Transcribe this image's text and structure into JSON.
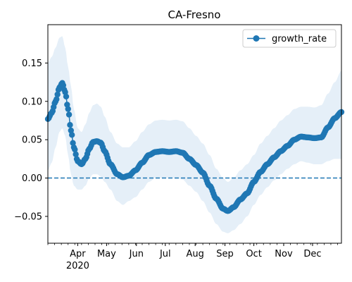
{
  "chart_data": {
    "type": "line",
    "title": "CA-Fresno",
    "xlabel": "",
    "ylabel": "",
    "x_axis": {
      "type": "date",
      "range": [
        "2020-03-01",
        "2020-12-31"
      ],
      "ticks": [
        {
          "date": "2020-04-01",
          "label": "Apr",
          "sublabel": "2020"
        },
        {
          "date": "2020-05-01",
          "label": "May",
          "sublabel": ""
        },
        {
          "date": "2020-06-01",
          "label": "Jun",
          "sublabel": ""
        },
        {
          "date": "2020-07-01",
          "label": "Jul",
          "sublabel": ""
        },
        {
          "date": "2020-08-01",
          "label": "Aug",
          "sublabel": ""
        },
        {
          "date": "2020-09-01",
          "label": "Sep",
          "sublabel": ""
        },
        {
          "date": "2020-10-01",
          "label": "Oct",
          "sublabel": ""
        },
        {
          "date": "2020-11-01",
          "label": "Nov",
          "sublabel": ""
        },
        {
          "date": "2020-12-01",
          "label": "Dec",
          "sublabel": ""
        }
      ],
      "minor_ticks": "weekly"
    },
    "y_axis": {
      "range": [
        -0.085,
        0.2
      ],
      "ticks": [
        -0.05,
        0.0,
        0.05,
        0.1,
        0.15
      ],
      "tick_labels": [
        "−0.05",
        "0.00",
        "0.05",
        "0.10",
        "0.15"
      ]
    },
    "grid": false,
    "legend": {
      "placement": "top-right",
      "entries": [
        "growth_rate"
      ]
    },
    "reference_line": {
      "y": 0.0,
      "style": "dashed",
      "color": "#1f77b4"
    },
    "colors": {
      "series": "#1f77b4",
      "band": "#dce9f5"
    },
    "series": [
      {
        "name": "growth_rate",
        "marker": "circle",
        "anchors": [
          {
            "date": "2020-03-01",
            "y": 0.077,
            "lower": 0.01,
            "upper": 0.15
          },
          {
            "date": "2020-03-05",
            "y": 0.085,
            "lower": 0.02,
            "upper": 0.158
          },
          {
            "date": "2020-03-09",
            "y": 0.1,
            "lower": 0.04,
            "upper": 0.17
          },
          {
            "date": "2020-03-13",
            "y": 0.118,
            "lower": 0.06,
            "upper": 0.183
          },
          {
            "date": "2020-03-16",
            "y": 0.124,
            "lower": 0.065,
            "upper": 0.185
          },
          {
            "date": "2020-03-19",
            "y": 0.112,
            "lower": 0.055,
            "upper": 0.17
          },
          {
            "date": "2020-03-22",
            "y": 0.09,
            "lower": 0.03,
            "upper": 0.145
          },
          {
            "date": "2020-03-25",
            "y": 0.062,
            "lower": 0.005,
            "upper": 0.12
          },
          {
            "date": "2020-03-28",
            "y": 0.04,
            "lower": -0.01,
            "upper": 0.09
          },
          {
            "date": "2020-04-01",
            "y": 0.022,
            "lower": -0.015,
            "upper": 0.065
          },
          {
            "date": "2020-04-05",
            "y": 0.018,
            "lower": -0.015,
            "upper": 0.06
          },
          {
            "date": "2020-04-09",
            "y": 0.025,
            "lower": -0.01,
            "upper": 0.07
          },
          {
            "date": "2020-04-13",
            "y": 0.038,
            "lower": 0.0,
            "upper": 0.085
          },
          {
            "date": "2020-04-17",
            "y": 0.047,
            "lower": 0.005,
            "upper": 0.095
          },
          {
            "date": "2020-04-21",
            "y": 0.048,
            "lower": 0.005,
            "upper": 0.097
          },
          {
            "date": "2020-04-25",
            "y": 0.046,
            "lower": 0.002,
            "upper": 0.093
          },
          {
            "date": "2020-04-29",
            "y": 0.035,
            "lower": -0.005,
            "upper": 0.08
          },
          {
            "date": "2020-05-05",
            "y": 0.018,
            "lower": -0.015,
            "upper": 0.06
          },
          {
            "date": "2020-05-12",
            "y": 0.005,
            "lower": -0.03,
            "upper": 0.045
          },
          {
            "date": "2020-05-18",
            "y": 0.001,
            "lower": -0.035,
            "upper": 0.04
          },
          {
            "date": "2020-05-24",
            "y": 0.003,
            "lower": -0.03,
            "upper": 0.04
          },
          {
            "date": "2020-05-31",
            "y": 0.01,
            "lower": -0.025,
            "upper": 0.048
          },
          {
            "date": "2020-06-07",
            "y": 0.02,
            "lower": -0.015,
            "upper": 0.06
          },
          {
            "date": "2020-06-14",
            "y": 0.03,
            "lower": -0.005,
            "upper": 0.07
          },
          {
            "date": "2020-06-21",
            "y": 0.034,
            "lower": 0.0,
            "upper": 0.075
          },
          {
            "date": "2020-06-28",
            "y": 0.035,
            "lower": 0.0,
            "upper": 0.076
          },
          {
            "date": "2020-07-05",
            "y": 0.034,
            "lower": 0.0,
            "upper": 0.075
          },
          {
            "date": "2020-07-12",
            "y": 0.035,
            "lower": 0.0,
            "upper": 0.076
          },
          {
            "date": "2020-07-19",
            "y": 0.033,
            "lower": -0.002,
            "upper": 0.074
          },
          {
            "date": "2020-07-26",
            "y": 0.025,
            "lower": -0.01,
            "upper": 0.065
          },
          {
            "date": "2020-08-02",
            "y": 0.017,
            "lower": -0.018,
            "upper": 0.055
          },
          {
            "date": "2020-08-09",
            "y": 0.007,
            "lower": -0.03,
            "upper": 0.045
          },
          {
            "date": "2020-08-16",
            "y": -0.01,
            "lower": -0.045,
            "upper": 0.03
          },
          {
            "date": "2020-08-23",
            "y": -0.027,
            "lower": -0.06,
            "upper": 0.012
          },
          {
            "date": "2020-08-30",
            "y": -0.04,
            "lower": -0.07,
            "upper": 0.0
          },
          {
            "date": "2020-09-04",
            "y": -0.043,
            "lower": -0.072,
            "upper": -0.005
          },
          {
            "date": "2020-09-10",
            "y": -0.038,
            "lower": -0.068,
            "upper": 0.0
          },
          {
            "date": "2020-09-17",
            "y": -0.028,
            "lower": -0.06,
            "upper": 0.01
          },
          {
            "date": "2020-09-24",
            "y": -0.02,
            "lower": -0.05,
            "upper": 0.018
          },
          {
            "date": "2020-10-01",
            "y": -0.005,
            "lower": -0.035,
            "upper": 0.03
          },
          {
            "date": "2020-10-08",
            "y": 0.008,
            "lower": -0.022,
            "upper": 0.045
          },
          {
            "date": "2020-10-15",
            "y": 0.018,
            "lower": -0.012,
            "upper": 0.055
          },
          {
            "date": "2020-10-22",
            "y": 0.027,
            "lower": -0.003,
            "upper": 0.065
          },
          {
            "date": "2020-10-29",
            "y": 0.035,
            "lower": 0.005,
            "upper": 0.075
          },
          {
            "date": "2020-11-05",
            "y": 0.042,
            "lower": 0.012,
            "upper": 0.082
          },
          {
            "date": "2020-11-12",
            "y": 0.05,
            "lower": 0.018,
            "upper": 0.09
          },
          {
            "date": "2020-11-19",
            "y": 0.054,
            "lower": 0.022,
            "upper": 0.093
          },
          {
            "date": "2020-11-26",
            "y": 0.053,
            "lower": 0.02,
            "upper": 0.093
          },
          {
            "date": "2020-12-03",
            "y": 0.052,
            "lower": 0.018,
            "upper": 0.092
          },
          {
            "date": "2020-12-10",
            "y": 0.053,
            "lower": 0.018,
            "upper": 0.095
          },
          {
            "date": "2020-12-17",
            "y": 0.066,
            "lower": 0.022,
            "upper": 0.11
          },
          {
            "date": "2020-12-24",
            "y": 0.078,
            "lower": 0.025,
            "upper": 0.125
          },
          {
            "date": "2020-12-31",
            "y": 0.086,
            "lower": 0.025,
            "upper": 0.14
          }
        ]
      }
    ]
  }
}
